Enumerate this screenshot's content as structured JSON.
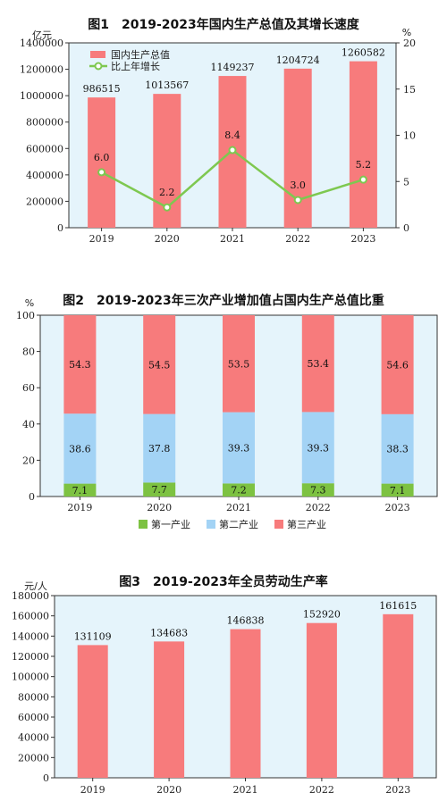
{
  "chart_data": [
    {
      "type": "bar",
      "title": "图1　2019-2023年国内生产总值及其增长速度",
      "categories": [
        "2019",
        "2020",
        "2021",
        "2022",
        "2023"
      ],
      "ylabel": "亿元",
      "y2label": "%",
      "ylim": [
        0,
        1400000
      ],
      "y2lim": [
        0,
        20
      ],
      "yticks": [
        "0",
        "200000",
        "400000",
        "600000",
        "800000",
        "1000000",
        "1200000",
        "1400000"
      ],
      "y2ticks": [
        "0",
        "5",
        "10",
        "15",
        "20"
      ],
      "legend_position": "top-left",
      "series": [
        {
          "name": "国内生产总值",
          "kind": "bar",
          "color": "#f77b7c",
          "values": [
            986515,
            1013567,
            1149237,
            1204724,
            1260582
          ],
          "labels": [
            "986515",
            "1013567",
            "1149237",
            "1204724",
            "1260582"
          ]
        },
        {
          "name": "比上年增长",
          "kind": "line",
          "axis": "right",
          "color": "#7ec850",
          "values": [
            6.0,
            2.2,
            8.4,
            3.0,
            5.2
          ],
          "labels": [
            "6.0",
            "2.2",
            "8.4",
            "3.0",
            "5.2"
          ]
        }
      ],
      "background": "#e5f4fb",
      "grid": false
    },
    {
      "type": "bar",
      "stacked": true,
      "title": "图2　2019-2023年三次产业增加值占国内生产总值比重",
      "categories": [
        "2019",
        "2020",
        "2021",
        "2022",
        "2023"
      ],
      "ylabel": "%",
      "ylim": [
        0,
        100
      ],
      "yticks": [
        "0",
        "20",
        "40",
        "60",
        "80",
        "100"
      ],
      "legend_position": "bottom",
      "series": [
        {
          "name": "第一产业",
          "color": "#7dc242",
          "values": [
            7.1,
            7.7,
            7.2,
            7.3,
            7.1
          ],
          "labels": [
            "7.1",
            "7.7",
            "7.2",
            "7.3",
            "7.1"
          ]
        },
        {
          "name": "第二产业",
          "color": "#a3d3f5",
          "values": [
            38.6,
            37.8,
            39.3,
            39.3,
            38.3
          ],
          "labels": [
            "38.6",
            "37.8",
            "39.3",
            "39.3",
            "38.3"
          ]
        },
        {
          "name": "第三产业",
          "color": "#f77b7c",
          "values": [
            54.3,
            54.5,
            53.5,
            53.4,
            54.6
          ],
          "labels": [
            "54.3",
            "54.5",
            "53.5",
            "53.4",
            "54.6"
          ]
        }
      ],
      "background": "#e5f4fb",
      "grid": false
    },
    {
      "type": "bar",
      "title": "图3　2019-2023年全员劳动生产率",
      "categories": [
        "2019",
        "2020",
        "2021",
        "2022",
        "2023"
      ],
      "ylabel": "元/人",
      "ylim": [
        0,
        180000
      ],
      "yticks": [
        "0",
        "20000",
        "40000",
        "60000",
        "80000",
        "100000",
        "120000",
        "140000",
        "160000",
        "180000"
      ],
      "series": [
        {
          "name": "",
          "color": "#f77b7c",
          "values": [
            131109,
            134683,
            146838,
            152920,
            161615
          ],
          "labels": [
            "131109",
            "134683",
            "146838",
            "152920",
            "161615"
          ]
        }
      ],
      "background": "#e5f4fb",
      "grid": false
    }
  ]
}
